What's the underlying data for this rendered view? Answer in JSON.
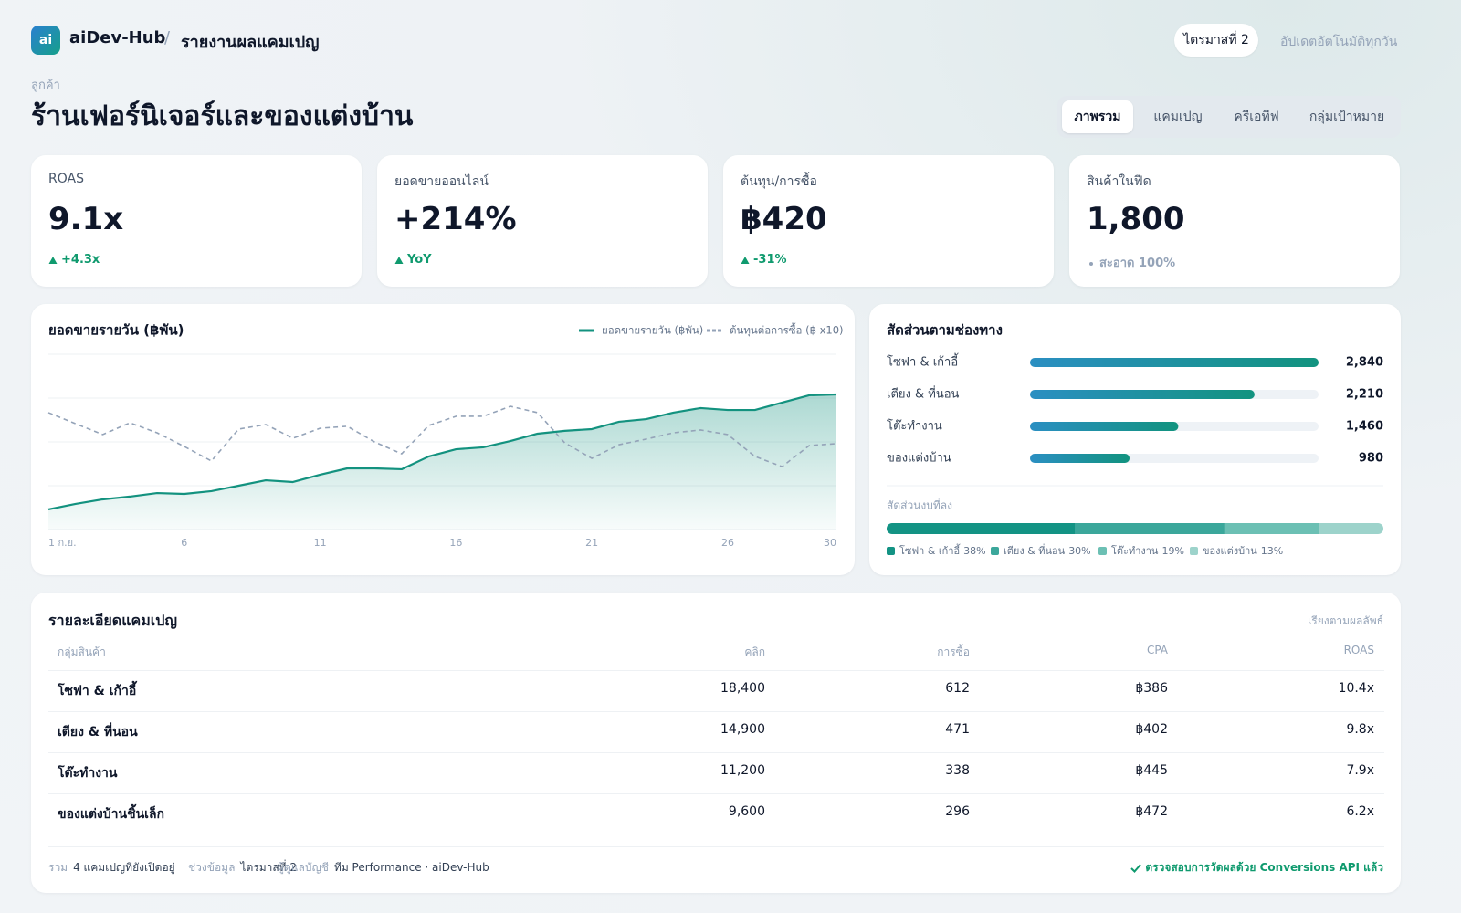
{
  "header": {
    "logo": "ai",
    "brand": "aiDev-Hub",
    "separator": "/",
    "page": "รายงานผลแคมเปญ",
    "period": "ไตรมาสที่ 2",
    "update": "อัปเดตอัตโนมัติทุกวัน"
  },
  "client": {
    "label": "ลูกค้า",
    "name": "ร้านเฟอร์นิเจอร์และของแต่งบ้าน"
  },
  "tabs": [
    "ภาพรวม",
    "แคมเปญ",
    "ครีเอทีฟ",
    "กลุ่มเป้าหมาย"
  ],
  "kpis": [
    {
      "label": "ROAS",
      "value": "9.1x",
      "delta": "+4.3x",
      "trend": "up"
    },
    {
      "label": "ยอดขายออนไลน์",
      "value": "+214%",
      "delta": "YoY",
      "trend": "up"
    },
    {
      "label": "ต้นทุน/การซื้อ",
      "value": "฿420",
      "delta": "-31%",
      "trend": "up"
    },
    {
      "label": "สินค้าในฟีด",
      "value": "1,800",
      "delta": "สะอาด 100%",
      "trend": "neutral"
    }
  ],
  "chart_data": [
    {
      "type": "line",
      "title": "ยอดขายรายวัน (฿พัน)",
      "x": [
        1,
        2,
        3,
        4,
        5,
        6,
        7,
        8,
        9,
        10,
        11,
        12,
        13,
        14,
        15,
        16,
        17,
        18,
        19,
        20,
        21,
        22,
        23,
        24,
        25,
        26,
        27,
        28,
        29,
        30
      ],
      "xlim": [
        1,
        30
      ],
      "xticks": [
        {
          "value": 1,
          "label": "1 ก.ย."
        },
        6,
        11,
        16,
        21,
        26,
        30
      ],
      "ylim": [
        0,
        100
      ],
      "yticks": [
        0,
        25,
        50,
        75,
        100
      ],
      "grid": true,
      "series": [
        {
          "name": "ยอดขายรายวัน (฿พัน)",
          "color": "#13927f",
          "dashed": false,
          "fill": true,
          "values": [
            11.5,
            14.6,
            17.2,
            18.8,
            20.8,
            20.3,
            21.9,
            25,
            28.1,
            27.1,
            31.3,
            34.9,
            34.9,
            34.4,
            41.7,
            45.8,
            46.9,
            50.5,
            54.7,
            56.3,
            57.3,
            61.5,
            63,
            66.7,
            69.3,
            68.2,
            68.2,
            72.4,
            76.6,
            77.1
          ]
        },
        {
          "name": "ต้นทุนต่อการซื้อ (฿ x10)",
          "color": "#94a3b8",
          "dashed": true,
          "fill": false,
          "values": [
            66.7,
            60.4,
            54.2,
            60.9,
            55.2,
            47.4,
            39.1,
            57.3,
            59.9,
            52.1,
            57.8,
            58.9,
            50,
            43.2,
            59.4,
            64.6,
            64.6,
            70.3,
            66.7,
            49.5,
            40.6,
            48.4,
            51.6,
            55.2,
            56.8,
            54.2,
            41.7,
            35.9,
            47.9,
            49
          ]
        }
      ]
    },
    {
      "type": "hbar",
      "title": "สัดส่วนตามช่องทาง",
      "categories": [
        "โซฟา & เก้าอี้",
        "เตียง & ที่นอน",
        "โต๊ะทำงาน",
        "ของแต่งบ้าน"
      ],
      "values": [
        2840,
        2210,
        1460,
        980
      ],
      "value_labels": [
        "2,840",
        "2,210",
        "1,460",
        "980"
      ],
      "xlim": [
        0,
        2840
      ],
      "colors": [
        "#2b8fc2",
        "#12937f"
      ]
    },
    {
      "type": "stacked",
      "title": "สัดส่วนงบที่ลง",
      "categories": [
        "โซฟา & เก้าอี้",
        "เตียง & ที่นอน",
        "โต๊ะทำงาน",
        "ของแต่งบ้าน"
      ],
      "values": [
        38,
        30,
        19,
        13
      ],
      "value_labels": [
        "38%",
        "30%",
        "19%",
        "13%"
      ],
      "colors": [
        "#139384",
        "#3ba79b",
        "#6cc0b4",
        "#9dd3cb"
      ],
      "xlim": [
        0,
        100
      ]
    }
  ],
  "table": {
    "title": "รายละเอียดแคมเปญ",
    "sort": "เรียงตามผลลัพธ์",
    "columns": [
      "กลุ่มสินค้า",
      "คลิก",
      "การซื้อ",
      "CPA",
      "ROAS"
    ],
    "rows": [
      [
        "โซฟา & เก้าอี้",
        "18,400",
        "612",
        "฿386",
        "10.4x"
      ],
      [
        "เตียง & ที่นอน",
        "14,900",
        "471",
        "฿402",
        "9.8x"
      ],
      [
        "โต๊ะทำงาน",
        "11,200",
        "338",
        "฿445",
        "7.9x"
      ],
      [
        "ของแต่งบ้านชิ้นเล็ก",
        "9,600",
        "296",
        "฿472",
        "6.2x"
      ]
    ],
    "footer": [
      {
        "label": "รวม",
        "value": "4 แคมเปญที่ยังเปิดอยู่"
      },
      {
        "label": "ช่วงข้อมูล",
        "value": "ไตรมาสที่ 2"
      },
      {
        "label": "ผู้ดูแลบัญชี",
        "value": "ทีม Performance · aiDev-Hub"
      }
    ],
    "verified": "ตรวจสอบการวัดผลด้วย Conversions API แล้ว"
  }
}
